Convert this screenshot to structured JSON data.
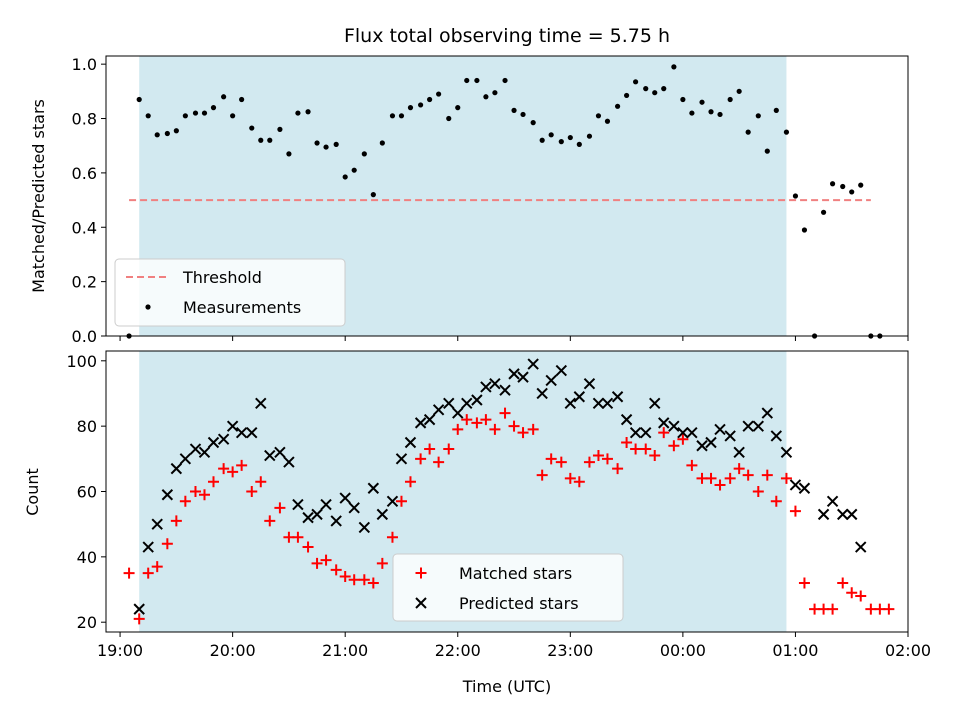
{
  "chart_data": [
    {
      "type": "scatter",
      "title": "Flux total observing time = 5.75 h",
      "xlabel": "",
      "ylabel": "Matched/Predicted stars",
      "ylim": [
        0,
        1.03
      ],
      "xlim": [
        "19:00",
        "02:00"
      ],
      "x_unit": "hours (UTC, 24+ means after midnight)",
      "yticks": [
        "0.0",
        "0.2",
        "0.4",
        "0.6",
        "0.8",
        "1.0"
      ],
      "yticks_values": [
        0,
        0.2,
        0.4,
        0.6,
        0.8,
        1.0
      ],
      "observing_window": {
        "start": 19.17,
        "end": 24.92,
        "color": "#d2e9f0"
      },
      "threshold": {
        "name": "Threshold",
        "value": 0.5,
        "x_start": 19.08,
        "x_end": 25.67,
        "color": "#f08080"
      },
      "legend": {
        "placement": "lower-left",
        "entries": [
          "Threshold",
          "Measurements"
        ]
      },
      "series": [
        {
          "name": "Measurements",
          "color": "#000000",
          "marker": "dot",
          "points": [
            [
              19.08,
              0.0
            ],
            [
              19.17,
              0.87
            ],
            [
              19.25,
              0.81
            ],
            [
              19.33,
              0.74
            ],
            [
              19.42,
              0.745
            ],
            [
              19.5,
              0.755
            ],
            [
              19.58,
              0.81
            ],
            [
              19.67,
              0.82
            ],
            [
              19.75,
              0.82
            ],
            [
              19.83,
              0.84
            ],
            [
              19.92,
              0.88
            ],
            [
              20.0,
              0.81
            ],
            [
              20.08,
              0.87
            ],
            [
              20.17,
              0.765
            ],
            [
              20.25,
              0.72
            ],
            [
              20.33,
              0.72
            ],
            [
              20.42,
              0.76
            ],
            [
              20.5,
              0.67
            ],
            [
              20.58,
              0.82
            ],
            [
              20.67,
              0.825
            ],
            [
              20.75,
              0.71
            ],
            [
              20.83,
              0.695
            ],
            [
              20.92,
              0.705
            ],
            [
              21.0,
              0.585
            ],
            [
              21.08,
              0.61
            ],
            [
              21.17,
              0.67
            ],
            [
              21.25,
              0.52
            ],
            [
              21.33,
              0.71
            ],
            [
              21.42,
              0.81
            ],
            [
              21.5,
              0.81
            ],
            [
              21.58,
              0.84
            ],
            [
              21.67,
              0.85
            ],
            [
              21.75,
              0.87
            ],
            [
              21.83,
              0.89
            ],
            [
              21.92,
              0.8
            ],
            [
              22.0,
              0.84
            ],
            [
              22.08,
              0.94
            ],
            [
              22.17,
              0.94
            ],
            [
              22.25,
              0.88
            ],
            [
              22.33,
              0.895
            ],
            [
              22.42,
              0.94
            ],
            [
              22.5,
              0.83
            ],
            [
              22.58,
              0.815
            ],
            [
              22.67,
              0.785
            ],
            [
              22.75,
              0.72
            ],
            [
              22.83,
              0.74
            ],
            [
              22.92,
              0.715
            ],
            [
              23.0,
              0.73
            ],
            [
              23.08,
              0.705
            ],
            [
              23.17,
              0.735
            ],
            [
              23.25,
              0.81
            ],
            [
              23.33,
              0.79
            ],
            [
              23.42,
              0.845
            ],
            [
              23.5,
              0.885
            ],
            [
              23.58,
              0.935
            ],
            [
              23.67,
              0.91
            ],
            [
              23.75,
              0.895
            ],
            [
              23.83,
              0.91
            ],
            [
              23.92,
              0.99
            ],
            [
              24.0,
              0.87
            ],
            [
              24.08,
              0.82
            ],
            [
              24.17,
              0.86
            ],
            [
              24.25,
              0.825
            ],
            [
              24.33,
              0.815
            ],
            [
              24.42,
              0.87
            ],
            [
              24.5,
              0.9
            ],
            [
              24.58,
              0.75
            ],
            [
              24.67,
              0.81
            ],
            [
              24.75,
              0.68
            ],
            [
              24.83,
              0.83
            ],
            [
              24.92,
              0.75
            ],
            [
              25.0,
              0.515
            ],
            [
              25.08,
              0.39
            ],
            [
              25.17,
              0.0
            ],
            [
              25.25,
              0.455
            ],
            [
              25.33,
              0.56
            ],
            [
              25.42,
              0.55
            ],
            [
              25.5,
              0.53
            ],
            [
              25.58,
              0.555
            ],
            [
              25.67,
              0.0
            ],
            [
              25.75,
              0.0
            ]
          ]
        }
      ]
    },
    {
      "type": "scatter",
      "title": "",
      "xlabel": "Time (UTC)",
      "ylabel": "Count",
      "ylim": [
        17,
        103
      ],
      "xlim": [
        "19:00",
        "02:00"
      ],
      "yticks": [
        "20",
        "40",
        "60",
        "80",
        "100"
      ],
      "yticks_values": [
        20,
        40,
        60,
        80,
        100
      ],
      "xticks": [
        "19:00",
        "20:00",
        "21:00",
        "22:00",
        "23:00",
        "00:00",
        "01:00",
        "02:00"
      ],
      "xticks_values": [
        19,
        20,
        21,
        22,
        23,
        24,
        25,
        26
      ],
      "observing_window": {
        "start": 19.17,
        "end": 24.92,
        "color": "#d2e9f0"
      },
      "legend": {
        "placement": "lower-center",
        "entries": [
          "Matched stars",
          "Predicted stars"
        ]
      },
      "series": [
        {
          "name": "Matched stars",
          "color": "#ff0000",
          "marker": "plus",
          "points": [
            [
              19.08,
              35
            ],
            [
              19.17,
              21
            ],
            [
              19.25,
              35
            ],
            [
              19.33,
              37
            ],
            [
              19.42,
              44
            ],
            [
              19.5,
              51
            ],
            [
              19.58,
              57
            ],
            [
              19.67,
              60
            ],
            [
              19.75,
              59
            ],
            [
              19.83,
              63
            ],
            [
              19.92,
              67
            ],
            [
              20.0,
              66
            ],
            [
              20.08,
              68
            ],
            [
              20.17,
              60
            ],
            [
              20.25,
              63
            ],
            [
              20.33,
              51
            ],
            [
              20.42,
              55
            ],
            [
              20.5,
              46
            ],
            [
              20.58,
              46
            ],
            [
              20.67,
              43
            ],
            [
              20.75,
              38
            ],
            [
              20.83,
              39
            ],
            [
              20.92,
              36
            ],
            [
              21.0,
              34
            ],
            [
              21.08,
              33
            ],
            [
              21.17,
              33
            ],
            [
              21.25,
              32
            ],
            [
              21.33,
              38
            ],
            [
              21.42,
              46
            ],
            [
              21.5,
              57
            ],
            [
              21.58,
              63
            ],
            [
              21.67,
              70
            ],
            [
              21.75,
              73
            ],
            [
              21.83,
              69
            ],
            [
              21.92,
              73
            ],
            [
              22.0,
              79
            ],
            [
              22.08,
              82
            ],
            [
              22.17,
              81
            ],
            [
              22.25,
              82
            ],
            [
              22.33,
              79
            ],
            [
              22.42,
              84
            ],
            [
              22.5,
              80
            ],
            [
              22.58,
              78
            ],
            [
              22.67,
              79
            ],
            [
              22.75,
              65
            ],
            [
              22.83,
              70
            ],
            [
              22.92,
              69
            ],
            [
              23.0,
              64
            ],
            [
              23.08,
              63
            ],
            [
              23.17,
              69
            ],
            [
              23.25,
              71
            ],
            [
              23.33,
              70
            ],
            [
              23.42,
              67
            ],
            [
              23.5,
              75
            ],
            [
              23.58,
              73
            ],
            [
              23.67,
              73
            ],
            [
              23.75,
              71
            ],
            [
              23.83,
              78
            ],
            [
              23.92,
              74
            ],
            [
              24.0,
              76
            ],
            [
              24.08,
              68
            ],
            [
              24.17,
              64
            ],
            [
              24.25,
              64
            ],
            [
              24.33,
              62
            ],
            [
              24.42,
              64
            ],
            [
              24.5,
              67
            ],
            [
              24.58,
              65
            ],
            [
              24.67,
              60
            ],
            [
              24.75,
              65
            ],
            [
              24.83,
              57
            ],
            [
              24.92,
              64
            ],
            [
              25.0,
              54
            ],
            [
              25.08,
              32
            ],
            [
              25.17,
              24
            ],
            [
              25.25,
              24
            ],
            [
              25.33,
              24
            ],
            [
              25.42,
              32
            ],
            [
              25.5,
              29
            ],
            [
              25.58,
              28
            ],
            [
              25.67,
              24
            ],
            [
              25.75,
              24
            ],
            [
              25.83,
              24
            ]
          ]
        },
        {
          "name": "Predicted stars",
          "color": "#000000",
          "marker": "x",
          "points": [
            [
              19.17,
              24
            ],
            [
              19.25,
              43
            ],
            [
              19.33,
              50
            ],
            [
              19.42,
              59
            ],
            [
              19.5,
              67
            ],
            [
              19.58,
              70
            ],
            [
              19.67,
              73
            ],
            [
              19.75,
              72
            ],
            [
              19.83,
              75
            ],
            [
              19.92,
              76
            ],
            [
              20.0,
              80
            ],
            [
              20.08,
              78
            ],
            [
              20.17,
              78
            ],
            [
              20.25,
              87
            ],
            [
              20.33,
              71
            ],
            [
              20.42,
              72
            ],
            [
              20.5,
              69
            ],
            [
              20.58,
              56
            ],
            [
              20.67,
              52
            ],
            [
              20.75,
              53
            ],
            [
              20.83,
              56
            ],
            [
              20.92,
              51
            ],
            [
              21.0,
              58
            ],
            [
              21.08,
              55
            ],
            [
              21.17,
              49
            ],
            [
              21.25,
              61
            ],
            [
              21.33,
              53
            ],
            [
              21.42,
              57
            ],
            [
              21.5,
              70
            ],
            [
              21.58,
              75
            ],
            [
              21.67,
              81
            ],
            [
              21.75,
              82
            ],
            [
              21.83,
              85
            ],
            [
              21.92,
              87
            ],
            [
              22.0,
              84
            ],
            [
              22.08,
              87
            ],
            [
              22.17,
              88
            ],
            [
              22.25,
              92
            ],
            [
              22.33,
              93
            ],
            [
              22.42,
              91
            ],
            [
              22.5,
              96
            ],
            [
              22.58,
              95
            ],
            [
              22.67,
              99
            ],
            [
              22.75,
              90
            ],
            [
              22.83,
              94
            ],
            [
              22.92,
              97
            ],
            [
              23.0,
              87
            ],
            [
              23.08,
              89
            ],
            [
              23.17,
              93
            ],
            [
              23.25,
              87
            ],
            [
              23.33,
              87
            ],
            [
              23.42,
              89
            ],
            [
              23.5,
              82
            ],
            [
              23.58,
              78
            ],
            [
              23.67,
              78
            ],
            [
              23.75,
              87
            ],
            [
              23.83,
              81
            ],
            [
              23.92,
              80
            ],
            [
              24.0,
              78
            ],
            [
              24.08,
              78
            ],
            [
              24.17,
              74
            ],
            [
              24.25,
              75
            ],
            [
              24.33,
              79
            ],
            [
              24.42,
              77
            ],
            [
              24.5,
              72
            ],
            [
              24.58,
              80
            ],
            [
              24.67,
              80
            ],
            [
              24.75,
              84
            ],
            [
              24.83,
              77
            ],
            [
              24.92,
              72
            ],
            [
              25.0,
              62
            ],
            [
              25.08,
              61
            ],
            [
              25.25,
              53
            ],
            [
              25.33,
              57
            ],
            [
              25.42,
              53
            ],
            [
              25.5,
              53
            ],
            [
              25.58,
              43
            ]
          ]
        }
      ]
    }
  ]
}
